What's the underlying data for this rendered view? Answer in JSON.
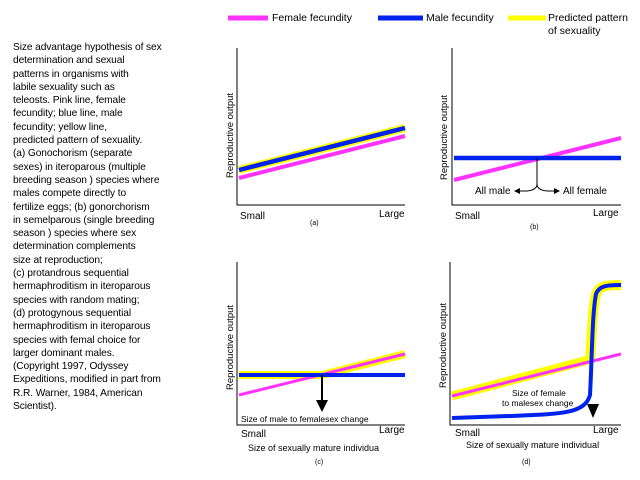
{
  "legend": {
    "female": "Female fecundity",
    "male": "Male fecundity",
    "predicted_line1": "Predicted pattern",
    "predicted_line2": "of sexuality"
  },
  "colors": {
    "female": "#ff33ff",
    "male": "#0022ee",
    "predicted": "#ffff00",
    "axis": "#000000"
  },
  "caption": "Size advantage hypothesis of sex\ndetermination and sexual\npatterns in organisms with\nlabile sexuality such as\nteleosts.  Pink line, female\nfecundity; blue line, male\nfecundity; yellow line,\npredicted pattern of sexuality.\n(a) Gonochorism (separate\nsexes) in iteroparous (multiple\nbreeding season ) species where\nmales compete directly to\nfertilize eggs; (b) gonorchorism\nin semelparous (single breeding\nseason ) species where sex\ndetermination complements\nsize at reproduction;\n(c) protandrous sequential\nhermaphroditism in iteroparous\nspecies with random mating;\n(d) protogynous sequential\nhermaphroditism in iteroparous\nspecies with femal choice for\nlarger dominant males.\n(Copyright 1997, Odyssey\nExpeditions, modified in part from\nR.R. Warner, 1984, American\nScientist).",
  "panels": {
    "a": {
      "ylabel": "Reproductive output",
      "small": "Small",
      "large": "Large",
      "tag": "(a)"
    },
    "b": {
      "ylabel": "Reproductive output",
      "small": "Small",
      "large": "Large",
      "tag": "(b)",
      "all_male": "All male",
      "all_female": "All female"
    },
    "c": {
      "ylabel": "Reproductive output",
      "small": "Small",
      "large": "Large",
      "tag": "(c)",
      "xlabel": "Size of sexually mature individua",
      "annotation": "Size of male to femalesex change"
    },
    "d": {
      "ylabel": "Reproductive output",
      "small": "Small",
      "large": "Large",
      "tag": "(d)",
      "xlabel": "Size of sexually mature individual",
      "annotation_line1": "Size of female",
      "annotation_line2": "to malesex change"
    }
  }
}
